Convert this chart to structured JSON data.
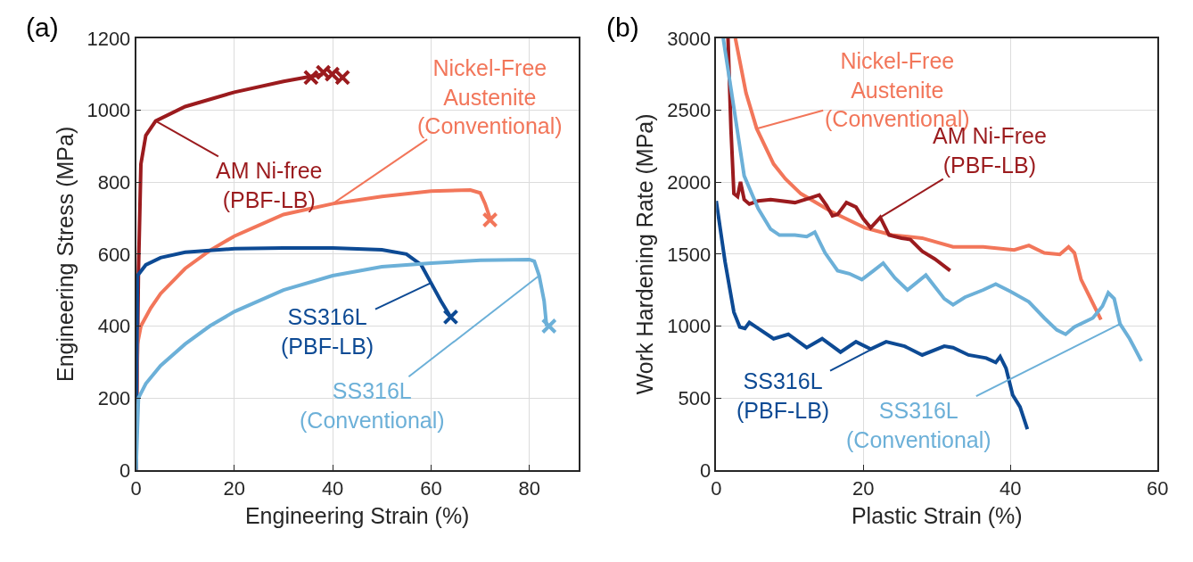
{
  "chart_data": [
    {
      "type": "line",
      "title": "(a)",
      "xlabel": "Engineering Strain (%)",
      "ylabel": "Engineering Stress (MPa)",
      "xlim": [
        0,
        90
      ],
      "xticks": [
        0,
        20,
        40,
        60,
        80
      ],
      "ylim": [
        0,
        1200
      ],
      "yticks": [
        0,
        200,
        400,
        600,
        800,
        1000,
        1200
      ],
      "grid": true,
      "legend": false,
      "series": [
        {
          "name": "AM Ni-free\n(PBF-LB)",
          "color": "#9b1b1e",
          "x": [
            0,
            0.5,
            1,
            2,
            4,
            10,
            20,
            30,
            38
          ],
          "values": [
            0,
            550,
            850,
            930,
            970,
            1010,
            1050,
            1080,
            1100
          ]
        },
        {
          "name": "Nickel-Free\nAustenite\n(Conventional)",
          "color": "#f2765a",
          "x": [
            0,
            0.3,
            1,
            3,
            5,
            10,
            15,
            20,
            30,
            40,
            50,
            60,
            68,
            70,
            71,
            72
          ],
          "values": [
            0,
            350,
            400,
            450,
            490,
            560,
            610,
            650,
            710,
            740,
            760,
            775,
            778,
            770,
            740,
            700
          ]
        },
        {
          "name": "SS316L\n(PBF-LB)",
          "color": "#0d4a94",
          "x": [
            0,
            0.3,
            2,
            5,
            10,
            20,
            30,
            40,
            50,
            55,
            58,
            60,
            62,
            64
          ],
          "values": [
            0,
            540,
            570,
            590,
            605,
            615,
            617,
            617,
            612,
            600,
            570,
            520,
            470,
            425
          ]
        },
        {
          "name": "SS316L\n(Conventional)",
          "color": "#6cb0d8",
          "x": [
            0,
            0.5,
            2,
            5,
            10,
            15,
            20,
            30,
            40,
            50,
            60,
            70,
            80,
            81,
            82,
            83,
            83.5
          ],
          "values": [
            0,
            200,
            240,
            290,
            350,
            400,
            440,
            500,
            540,
            565,
            575,
            583,
            585,
            580,
            540,
            470,
            400
          ]
        },
        {
          "type": "scatter",
          "marker": "cross",
          "color": "#9b1b1e",
          "x": [
            35.6,
            38.1,
            39.9,
            42
          ],
          "values": [
            1091,
            1105,
            1100,
            1091
          ]
        },
        {
          "type": "scatter",
          "marker": "cross",
          "color": "#f2765a",
          "x": [
            72
          ],
          "values": [
            695
          ]
        },
        {
          "type": "scatter",
          "marker": "cross",
          "color": "#0d4a94",
          "x": [
            64
          ],
          "values": [
            425
          ]
        },
        {
          "type": "scatter",
          "marker": "cross",
          "color": "#6cb0d8",
          "x": [
            84
          ],
          "values": [
            400
          ]
        }
      ]
    },
    {
      "type": "line",
      "title": "(b)",
      "xlabel": "Plastic Strain (%)",
      "ylabel": "Work Hardening Rate (MPa)",
      "xlim": [
        0,
        60
      ],
      "xticks": [
        0,
        20,
        40,
        60
      ],
      "ylim": [
        0,
        3000
      ],
      "yticks": [
        0,
        500,
        1000,
        1500,
        2000,
        2500,
        3000
      ],
      "grid": true,
      "legend": false,
      "series": [
        {
          "name": "Nickel-Free\nAustenite\n(Conventional)",
          "color": "#f2765a",
          "x": [
            2.6,
            4.05,
            5.5,
            7.8,
            9.4,
            11.5,
            15.6,
            20.2,
            23.9,
            28,
            32.2,
            36.3,
            40.5,
            42.5,
            44.6,
            46.7,
            47.9,
            48.7,
            49.6,
            50.8,
            52.3
          ],
          "values": [
            3000,
            2620,
            2372,
            2126,
            2023,
            1920,
            1797,
            1683,
            1632,
            1611,
            1550,
            1550,
            1529,
            1560,
            1508,
            1498,
            1550,
            1508,
            1323,
            1200,
            1045
          ]
        },
        {
          "name": "AM Ni-Free\n(PBF-LB)",
          "color": "#9b1b1e",
          "x": [
            1.6,
            2,
            2.4,
            2.9,
            3.3,
            3.8,
            4.5,
            5.7,
            7.4,
            10.7,
            12.7,
            14,
            15,
            15.8,
            16.5,
            17.7,
            19,
            20,
            21,
            22.3,
            23.5,
            25.2,
            26.4,
            28,
            29.7,
            31.8
          ],
          "values": [
            3000,
            2373,
            1920,
            1900,
            2002,
            1879,
            1848,
            1869,
            1879,
            1858,
            1889,
            1910,
            1838,
            1766,
            1776,
            1858,
            1827,
            1745,
            1683,
            1755,
            1632,
            1611,
            1601,
            1519,
            1467,
            1385
          ]
        },
        {
          "name": "SS316L\n(PBF-LB)",
          "color": "#0d4a94",
          "x": [
            0,
            1.2,
            2.4,
            3.2,
            3.9,
            4.5,
            5.7,
            7.8,
            9.8,
            12.3,
            14.4,
            16.9,
            19,
            21,
            23.1,
            25.6,
            28,
            31,
            32.2,
            34.3,
            36.7,
            38,
            38.6,
            39.4,
            40.3,
            41.3,
            42.3
          ],
          "values": [
            1869,
            1447,
            1097,
            994,
            984,
            1025,
            984,
            912,
            943,
            850,
            912,
            819,
            891,
            840,
            891,
            860,
            799,
            860,
            850,
            799,
            778,
            747,
            788,
            706,
            521,
            438,
            284
          ]
        },
        {
          "name": "SS316L\n(Conventional)",
          "color": "#6cb0d8",
          "x": [
            0.95,
            2.4,
            3.8,
            5.7,
            7.4,
            8.6,
            10.7,
            12.3,
            13.4,
            14.8,
            16.5,
            18.1,
            19.8,
            21.4,
            22.7,
            24.3,
            26,
            28.5,
            31,
            32.2,
            33.8,
            36.3,
            38,
            40,
            42.5,
            44.6,
            46.3,
            47.5,
            48.7,
            51.2,
            52.5,
            53.3,
            54.1,
            54.9,
            56.2,
            57.8
          ],
          "values": [
            3000,
            2517,
            2044,
            1817,
            1673,
            1632,
            1632,
            1622,
            1653,
            1508,
            1385,
            1364,
            1323,
            1385,
            1437,
            1334,
            1251,
            1354,
            1190,
            1148,
            1200,
            1251,
            1292,
            1241,
            1169,
            1056,
            973,
            943,
            994,
            1056,
            1138,
            1231,
            1190,
            1015,
            912,
            757
          ]
        }
      ]
    }
  ]
}
